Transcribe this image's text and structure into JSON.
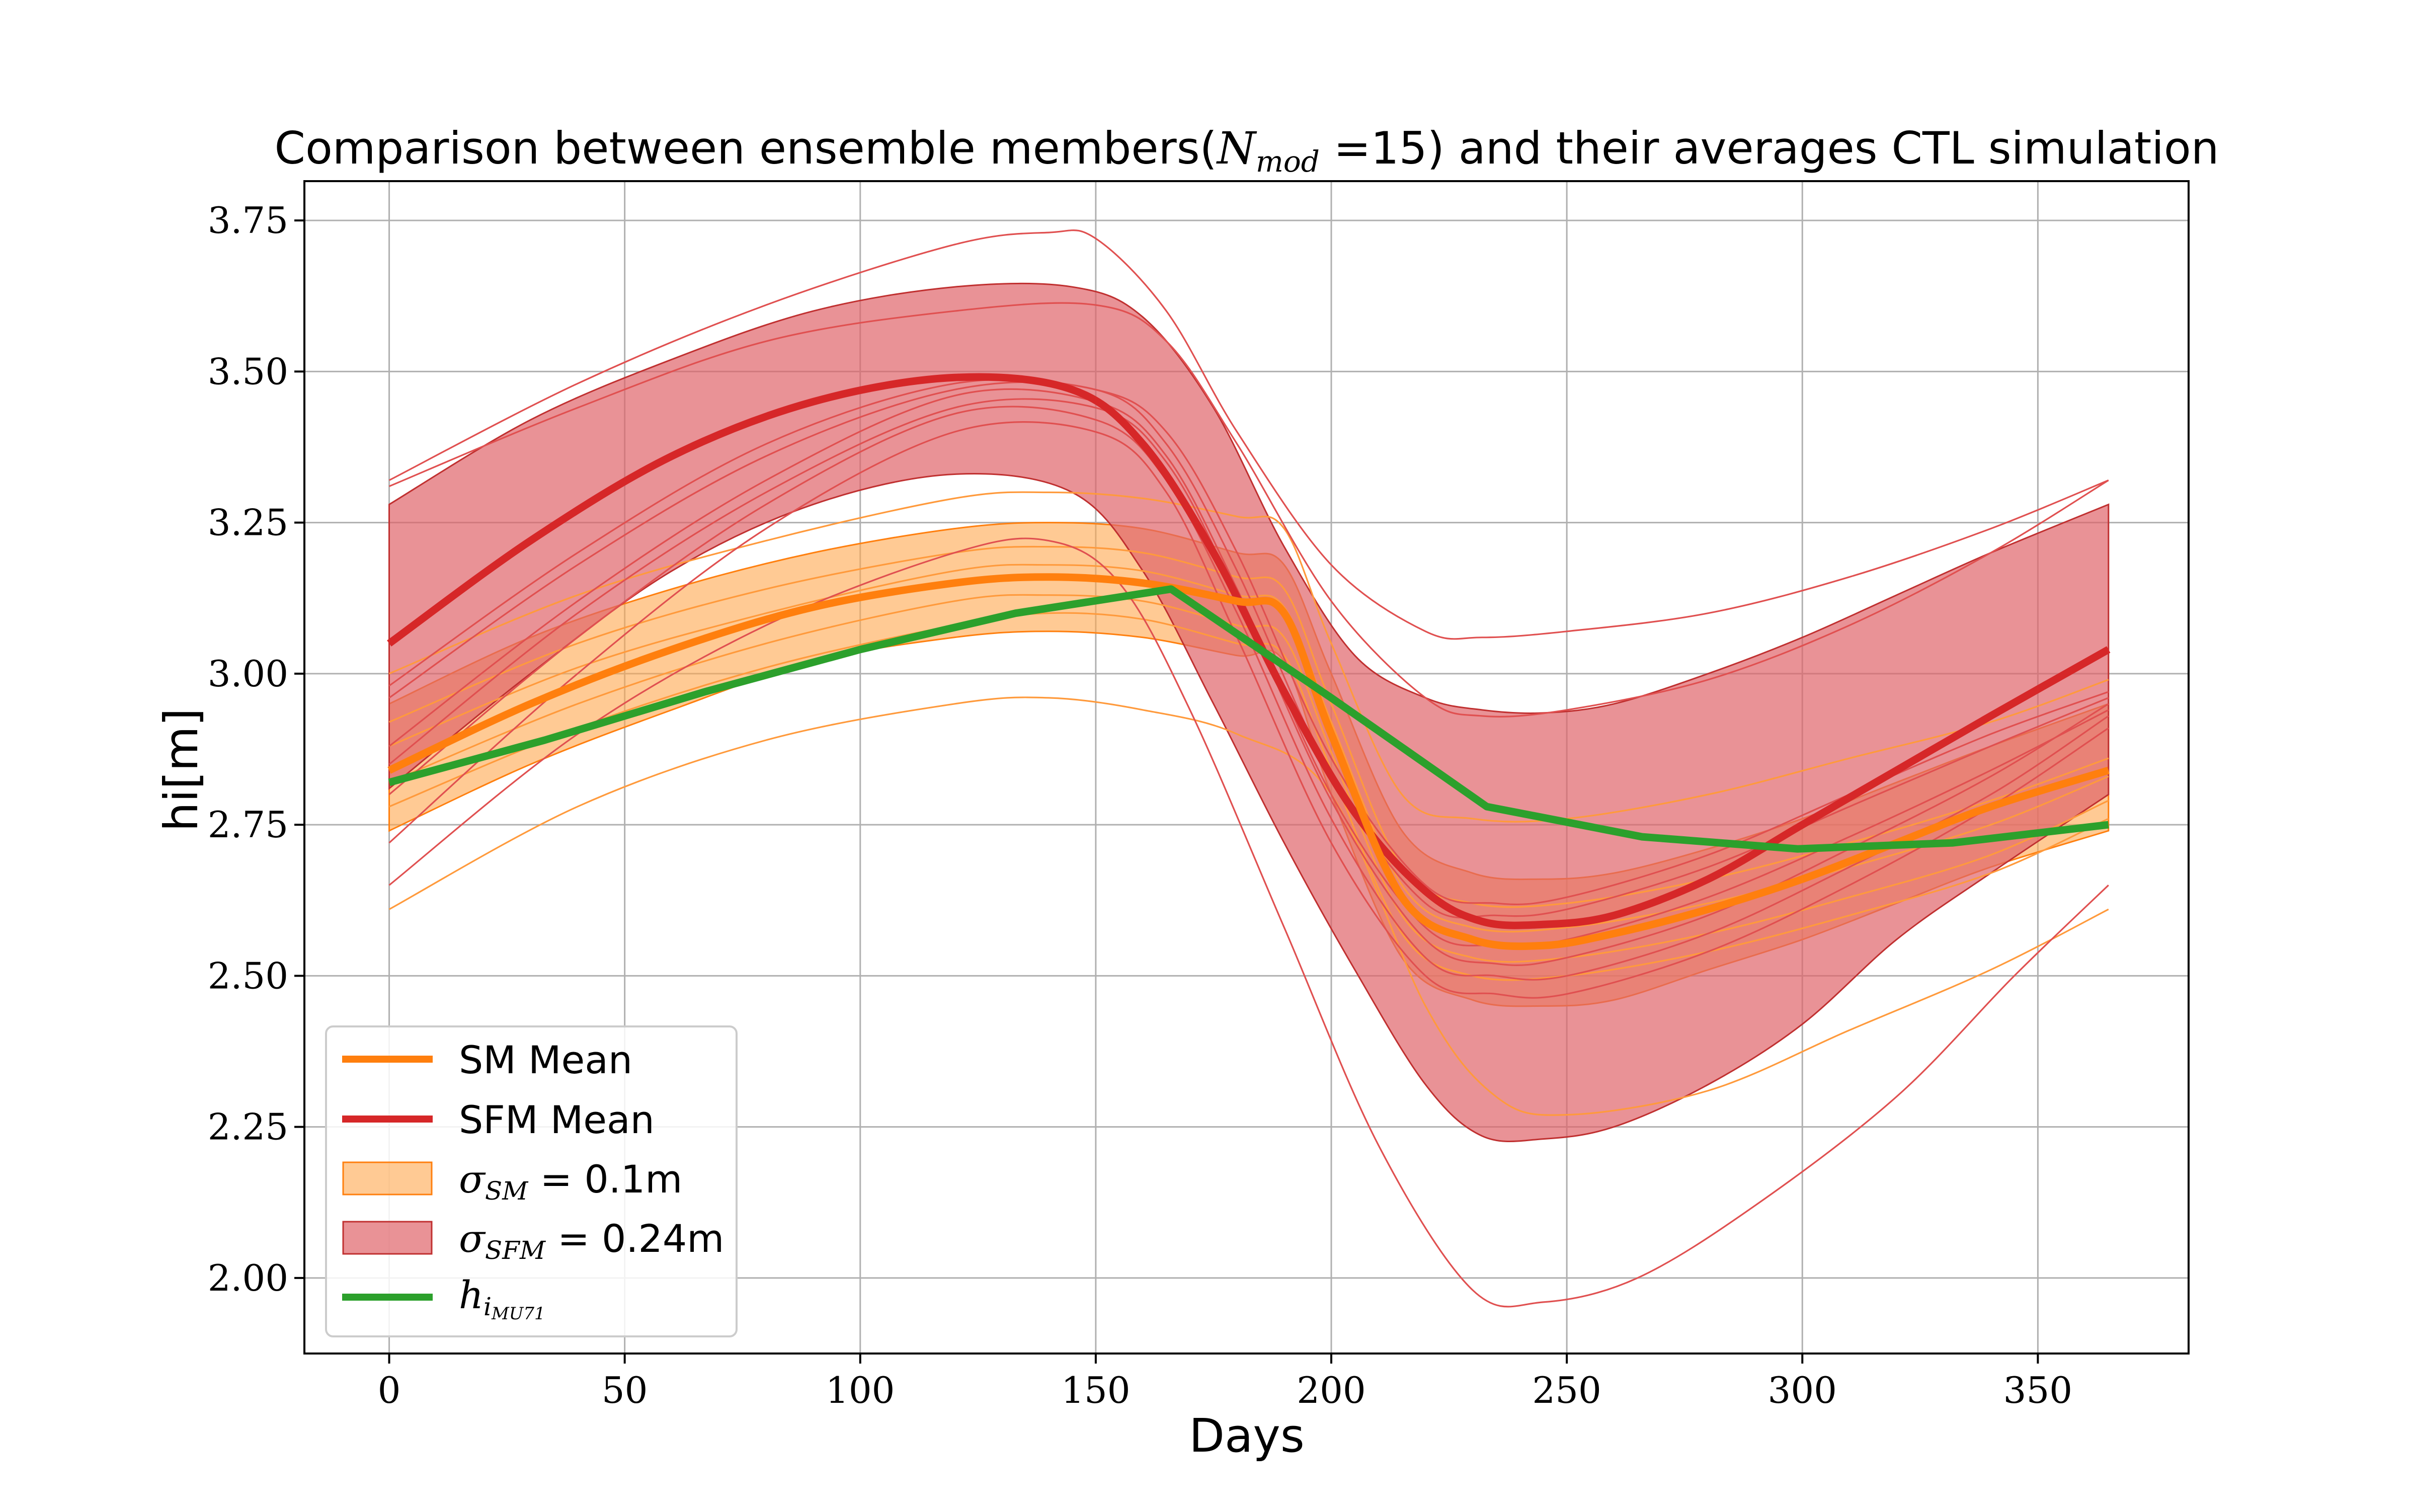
{
  "chart_data": {
    "type": "line",
    "title": {
      "prefix": "Comparison between ensemble members(",
      "n_symbol": "N",
      "n_subscript": "mod",
      "n_value": " =15)",
      "suffix": " and their averages CTL simulation"
    },
    "xlabel": "Days",
    "ylabel": "hi[m]",
    "xlim": [
      -18,
      382
    ],
    "ylim": [
      1.875,
      3.815
    ],
    "xticks": [
      0,
      50,
      100,
      150,
      200,
      250,
      300,
      350
    ],
    "yticks": [
      2.0,
      2.25,
      2.5,
      2.75,
      3.0,
      3.25,
      3.5,
      3.75
    ],
    "ytick_labels": [
      "2.00",
      "2.25",
      "2.50",
      "2.75",
      "3.00",
      "3.25",
      "3.50",
      "3.75"
    ],
    "grid": true,
    "legend_position": "lower-left",
    "colors": {
      "sm": "#ff7f0e",
      "sfm": "#d62728",
      "obs": "#2ca02c",
      "sm_band": "#ffa64d",
      "sfm_band": "#e0646a",
      "sfm_member": "#e05050",
      "sm_member": "#ff9a3c"
    },
    "legend": [
      {
        "key": "sm_mean",
        "label": "SM Mean",
        "kind": "line"
      },
      {
        "key": "sfm_mean",
        "label": "SFM Mean",
        "kind": "line"
      },
      {
        "key": "sm_band",
        "label_symbol": "σ",
        "label_sub": "SM",
        "label_rest": " = 0.1m",
        "kind": "patch"
      },
      {
        "key": "sfm_band",
        "label_symbol": "σ",
        "label_sub": "SFM",
        "label_rest": " = 0.24m",
        "kind": "patch"
      },
      {
        "key": "obs",
        "label_symbol": "h",
        "label_sub": "i",
        "label_subsub": "MU71",
        "kind": "line"
      }
    ],
    "series": {
      "sfm_mean": {
        "name": "SFM Mean",
        "x": [
          0,
          30,
          60,
          90,
          120,
          145,
          160,
          175,
          190,
          205,
          220,
          232,
          245,
          260,
          280,
          300,
          320,
          340,
          365
        ],
        "y": [
          3.05,
          3.22,
          3.36,
          3.45,
          3.49,
          3.47,
          3.38,
          3.2,
          2.97,
          2.77,
          2.64,
          2.59,
          2.585,
          2.6,
          2.66,
          2.75,
          2.84,
          2.93,
          3.04
        ]
      },
      "sm_mean": {
        "name": "SM Mean",
        "x": [
          0,
          30,
          60,
          90,
          120,
          140,
          160,
          180,
          190,
          200,
          215,
          230,
          245,
          260,
          280,
          300,
          320,
          340,
          365
        ],
        "y": [
          2.84,
          2.95,
          3.04,
          3.11,
          3.15,
          3.16,
          3.15,
          3.12,
          3.1,
          2.9,
          2.63,
          2.56,
          2.55,
          2.57,
          2.61,
          2.66,
          2.72,
          2.78,
          2.84
        ]
      },
      "obs": {
        "name": "",
        "x": [
          0,
          33,
          67,
          100,
          133,
          166,
          200,
          233,
          266,
          299,
          332,
          365
        ],
        "y": [
          2.82,
          2.89,
          2.97,
          3.04,
          3.1,
          3.14,
          2.96,
          2.78,
          2.73,
          2.71,
          2.72,
          2.75
        ]
      },
      "sfm_band_upper": {
        "x": [
          0,
          30,
          60,
          90,
          120,
          145,
          160,
          175,
          190,
          205,
          220,
          232,
          245,
          260,
          280,
          300,
          320,
          340,
          365
        ],
        "y": [
          3.28,
          3.42,
          3.52,
          3.6,
          3.64,
          3.64,
          3.59,
          3.44,
          3.21,
          3.03,
          2.96,
          2.94,
          2.935,
          2.95,
          3.0,
          3.06,
          3.13,
          3.2,
          3.28
        ]
      },
      "sfm_band_lower": {
        "x": [
          0,
          30,
          60,
          90,
          120,
          145,
          160,
          175,
          190,
          205,
          220,
          232,
          245,
          260,
          280,
          300,
          320,
          340,
          365
        ],
        "y": [
          2.81,
          3.0,
          3.17,
          3.28,
          3.33,
          3.3,
          3.17,
          2.95,
          2.72,
          2.51,
          2.32,
          2.235,
          2.23,
          2.25,
          2.32,
          2.42,
          2.56,
          2.67,
          2.8
        ]
      },
      "sm_band_upper": {
        "x": [
          0,
          30,
          60,
          90,
          120,
          140,
          160,
          180,
          190,
          200,
          215,
          230,
          245,
          260,
          280,
          300,
          320,
          340,
          365
        ],
        "y": [
          2.95,
          3.06,
          3.14,
          3.2,
          3.24,
          3.25,
          3.24,
          3.2,
          3.18,
          3.0,
          2.74,
          2.67,
          2.66,
          2.67,
          2.71,
          2.76,
          2.82,
          2.88,
          2.95
        ]
      },
      "sm_band_lower": {
        "x": [
          0,
          30,
          60,
          90,
          120,
          140,
          160,
          180,
          190,
          200,
          215,
          230,
          245,
          260,
          280,
          300,
          320,
          340,
          365
        ],
        "y": [
          2.74,
          2.85,
          2.94,
          3.02,
          3.06,
          3.07,
          3.06,
          3.03,
          3.02,
          2.8,
          2.53,
          2.46,
          2.45,
          2.46,
          2.51,
          2.56,
          2.62,
          2.68,
          2.74
        ]
      }
    },
    "sfm_members": [
      {
        "x": [
          0,
          40,
          80,
          120,
          140,
          150,
          165,
          180,
          200,
          220,
          232,
          250,
          280,
          310,
          340,
          365
        ],
        "y": [
          3.32,
          3.48,
          3.61,
          3.71,
          3.73,
          3.72,
          3.6,
          3.4,
          3.18,
          3.07,
          3.06,
          3.07,
          3.1,
          3.16,
          3.24,
          3.32
        ]
      },
      {
        "x": [
          0,
          40,
          80,
          120,
          150,
          165,
          180,
          200,
          220,
          232,
          250,
          280,
          310,
          340,
          365
        ],
        "y": [
          3.31,
          3.44,
          3.55,
          3.6,
          3.61,
          3.55,
          3.38,
          3.12,
          2.96,
          2.93,
          2.94,
          2.99,
          3.08,
          3.2,
          3.32
        ]
      },
      {
        "x": [
          0,
          40,
          80,
          120,
          150,
          165,
          180,
          200,
          220,
          235,
          250,
          280,
          310,
          340,
          365
        ],
        "y": [
          2.98,
          3.2,
          3.38,
          3.48,
          3.47,
          3.4,
          3.2,
          2.86,
          2.65,
          2.62,
          2.63,
          2.7,
          2.8,
          2.9,
          2.97
        ]
      },
      {
        "x": [
          0,
          40,
          80,
          120,
          150,
          165,
          180,
          200,
          220,
          235,
          250,
          280,
          310,
          340,
          365
        ],
        "y": [
          2.96,
          3.18,
          3.36,
          3.47,
          3.47,
          3.38,
          3.17,
          2.83,
          2.62,
          2.6,
          2.61,
          2.68,
          2.78,
          2.88,
          2.96
        ]
      },
      {
        "x": [
          0,
          40,
          80,
          120,
          150,
          165,
          180,
          200,
          220,
          235,
          250,
          280,
          310,
          340,
          365
        ],
        "y": [
          2.88,
          3.12,
          3.32,
          3.46,
          3.45,
          3.36,
          3.14,
          2.8,
          2.58,
          2.55,
          2.56,
          2.63,
          2.73,
          2.84,
          2.94
        ]
      },
      {
        "x": [
          0,
          40,
          80,
          120,
          150,
          165,
          180,
          200,
          220,
          235,
          250,
          280,
          310,
          340,
          365
        ],
        "y": [
          2.8,
          3.06,
          3.28,
          3.43,
          3.42,
          3.32,
          3.1,
          2.76,
          2.53,
          2.5,
          2.5,
          2.57,
          2.68,
          2.8,
          2.93
        ]
      },
      {
        "x": [
          0,
          40,
          80,
          120,
          150,
          165,
          180,
          200,
          220,
          235,
          250,
          280,
          310,
          340,
          365
        ],
        "y": [
          2.72,
          3.0,
          3.24,
          3.4,
          3.4,
          3.3,
          3.06,
          2.72,
          2.5,
          2.47,
          2.47,
          2.54,
          2.65,
          2.78,
          2.91
        ]
      },
      {
        "x": [
          0,
          40,
          80,
          120,
          140,
          155,
          170,
          190,
          210,
          230,
          245,
          265,
          290,
          320,
          345,
          365
        ],
        "y": [
          2.65,
          2.9,
          3.08,
          3.2,
          3.22,
          3.15,
          2.94,
          2.58,
          2.22,
          1.98,
          1.96,
          2.0,
          2.12,
          2.3,
          2.5,
          2.65
        ]
      },
      {
        "x": [
          0,
          40,
          80,
          120,
          150,
          165,
          180,
          200,
          220,
          235,
          250,
          280,
          310,
          340,
          365
        ],
        "y": [
          2.85,
          3.1,
          3.3,
          3.44,
          3.44,
          3.35,
          3.13,
          2.79,
          2.56,
          2.52,
          2.53,
          2.6,
          2.71,
          2.83,
          2.95
        ]
      }
    ],
    "sm_members": [
      {
        "x": [
          0,
          40,
          80,
          120,
          140,
          160,
          180,
          190,
          200,
          215,
          230,
          250,
          280,
          310,
          340,
          365
        ],
        "y": [
          3.0,
          3.13,
          3.22,
          3.29,
          3.3,
          3.29,
          3.26,
          3.24,
          3.05,
          2.8,
          2.76,
          2.76,
          2.8,
          2.86,
          2.92,
          2.99
        ]
      },
      {
        "x": [
          0,
          40,
          80,
          120,
          140,
          160,
          180,
          190,
          200,
          215,
          230,
          250,
          280,
          310,
          340,
          365
        ],
        "y": [
          2.92,
          3.05,
          3.14,
          3.2,
          3.21,
          3.2,
          3.16,
          3.14,
          2.95,
          2.68,
          2.62,
          2.62,
          2.66,
          2.72,
          2.79,
          2.86
        ]
      },
      {
        "x": [
          0,
          40,
          80,
          120,
          140,
          160,
          180,
          190,
          200,
          215,
          230,
          250,
          280,
          310,
          340,
          365
        ],
        "y": [
          2.88,
          3.01,
          3.1,
          3.17,
          3.18,
          3.17,
          3.13,
          3.11,
          2.92,
          2.65,
          2.58,
          2.58,
          2.62,
          2.68,
          2.75,
          2.83
        ]
      },
      {
        "x": [
          0,
          40,
          80,
          120,
          140,
          160,
          180,
          190,
          200,
          215,
          230,
          250,
          280,
          310,
          340,
          365
        ],
        "y": [
          2.82,
          2.95,
          3.05,
          3.12,
          3.13,
          3.12,
          3.08,
          3.06,
          2.87,
          2.6,
          2.53,
          2.53,
          2.57,
          2.63,
          2.7,
          2.79
        ]
      },
      {
        "x": [
          0,
          40,
          80,
          120,
          140,
          160,
          180,
          190,
          200,
          215,
          230,
          250,
          280,
          310,
          340,
          365
        ],
        "y": [
          2.78,
          2.91,
          3.01,
          3.08,
          3.1,
          3.09,
          3.05,
          3.03,
          2.84,
          2.57,
          2.5,
          2.5,
          2.54,
          2.6,
          2.67,
          2.76
        ]
      },
      {
        "x": [
          0,
          40,
          80,
          120,
          140,
          160,
          180,
          200,
          220,
          235,
          250,
          280,
          310,
          340,
          365
        ],
        "y": [
          2.61,
          2.78,
          2.89,
          2.95,
          2.96,
          2.94,
          2.9,
          2.8,
          2.45,
          2.3,
          2.27,
          2.31,
          2.41,
          2.51,
          2.61
        ]
      }
    ]
  }
}
